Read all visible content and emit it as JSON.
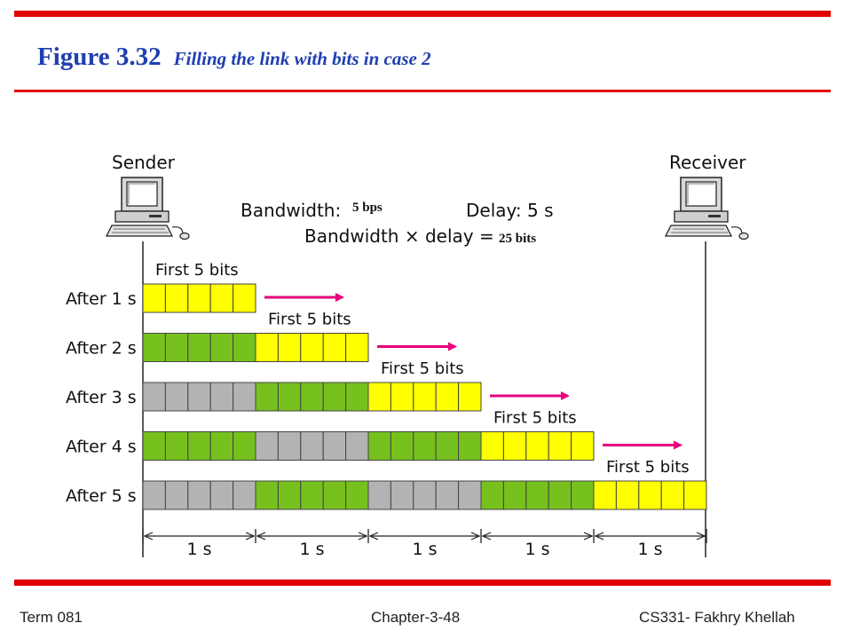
{
  "slide": {
    "title_figure": "Figure 3.32",
    "title_caption": "Filling the link with bits in case 2",
    "accent_color": "#e00000",
    "title_color": "#1f3fb0"
  },
  "diagram": {
    "sender_label": "Sender",
    "receiver_label": "Receiver",
    "bandwidth_label": "Bandwidth: ",
    "bandwidth_value": "5 bps",
    "delay_label": "Delay: 5 s",
    "bd_label": "Bandwidth × delay = ",
    "bd_value": "25 bits",
    "first_bits_label": "First 5 bits",
    "rows": [
      {
        "label": "After 1 s",
        "groups": [
          "yellow"
        ]
      },
      {
        "label": "After 2 s",
        "groups": [
          "green",
          "yellow"
        ]
      },
      {
        "label": "After 3 s",
        "groups": [
          "gray",
          "green",
          "yellow"
        ]
      },
      {
        "label": "After 4 s",
        "groups": [
          "green",
          "gray",
          "green",
          "yellow"
        ]
      },
      {
        "label": "After 5 s",
        "groups": [
          "gray",
          "green",
          "gray",
          "green",
          "yellow"
        ]
      }
    ],
    "timeline": [
      "1 s",
      "1 s",
      "1 s",
      "1 s",
      "1 s"
    ],
    "colors": {
      "yellow": "#ffff00",
      "green": "#77c11e",
      "gray": "#b3b3b3",
      "arrow": "#e6007e",
      "box_border": "#444444"
    }
  },
  "footer": {
    "left": "Term 081",
    "center": "Chapter-3-48",
    "right": "CS331- Fakhry Khellah"
  }
}
